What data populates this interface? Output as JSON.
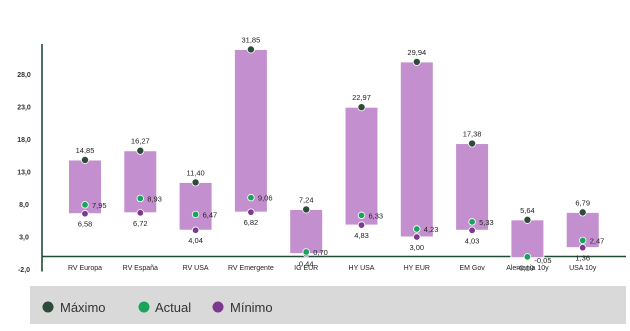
{
  "chart_data": {
    "type": "bar",
    "title": "",
    "xlabel": "",
    "ylabel": "",
    "ylim": [
      -2,
      34
    ],
    "yticks": [
      "-2,0",
      "3,0",
      "8,0",
      "13,0",
      "18,0",
      "23,0",
      "28,0"
    ],
    "ytick_values": [
      -2,
      3,
      8,
      13,
      18,
      23,
      28
    ],
    "grid": false,
    "legend_position": "bottom",
    "categories": [
      "RV Europa",
      "RV España",
      "RV USA",
      "RV Emergente",
      "IG EUR",
      "HY USA",
      "HY EUR",
      "EM Gov",
      "Alemania 10y",
      "USA 10y"
    ],
    "series": [
      {
        "name": "Máximo",
        "values": [
          14.85,
          16.27,
          11.4,
          31.85,
          7.24,
          22.97,
          29.94,
          17.38,
          5.64,
          6.79
        ],
        "labels": [
          "14,85",
          "16,27",
          "11,40",
          "31,85",
          "7,24",
          "22,97",
          "29,94",
          "17,38",
          "5,64",
          "6,79"
        ]
      },
      {
        "name": "Actual",
        "values": [
          7.95,
          8.93,
          6.47,
          9.06,
          0.7,
          6.33,
          4.23,
          5.33,
          -0.05,
          2.47
        ],
        "labels": [
          "7,95",
          "8,93",
          "6,47",
          "9,06",
          "0,70",
          "6,33",
          "4,23",
          "5,33",
          "-0,05",
          "2,47"
        ]
      },
      {
        "name": "Mínimo",
        "values": [
          6.58,
          6.72,
          4.04,
          6.82,
          0.44,
          4.83,
          3.0,
          4.03,
          -0.19,
          1.36
        ],
        "labels": [
          "6,58",
          "6,72",
          "4,04",
          "6,82",
          "0,44",
          "4,83",
          "3,00",
          "4,03",
          "-0,19",
          "1,36"
        ]
      }
    ],
    "colors": {
      "bar_fill": "#c48fcf",
      "bar_stroke": "#ffffff",
      "max_dot": "#2d4a3a",
      "actual_dot": "#1aa35a",
      "min_dot": "#7b3a8c",
      "axis": "#1f4d36",
      "legend_bg": "#d9d9d9"
    }
  },
  "legend": [
    {
      "label": "Máximo",
      "color": "#2d4a3a"
    },
    {
      "label": "Actual",
      "color": "#1aa35a"
    },
    {
      "label": "Mínimo",
      "color": "#7b3a8c"
    }
  ]
}
